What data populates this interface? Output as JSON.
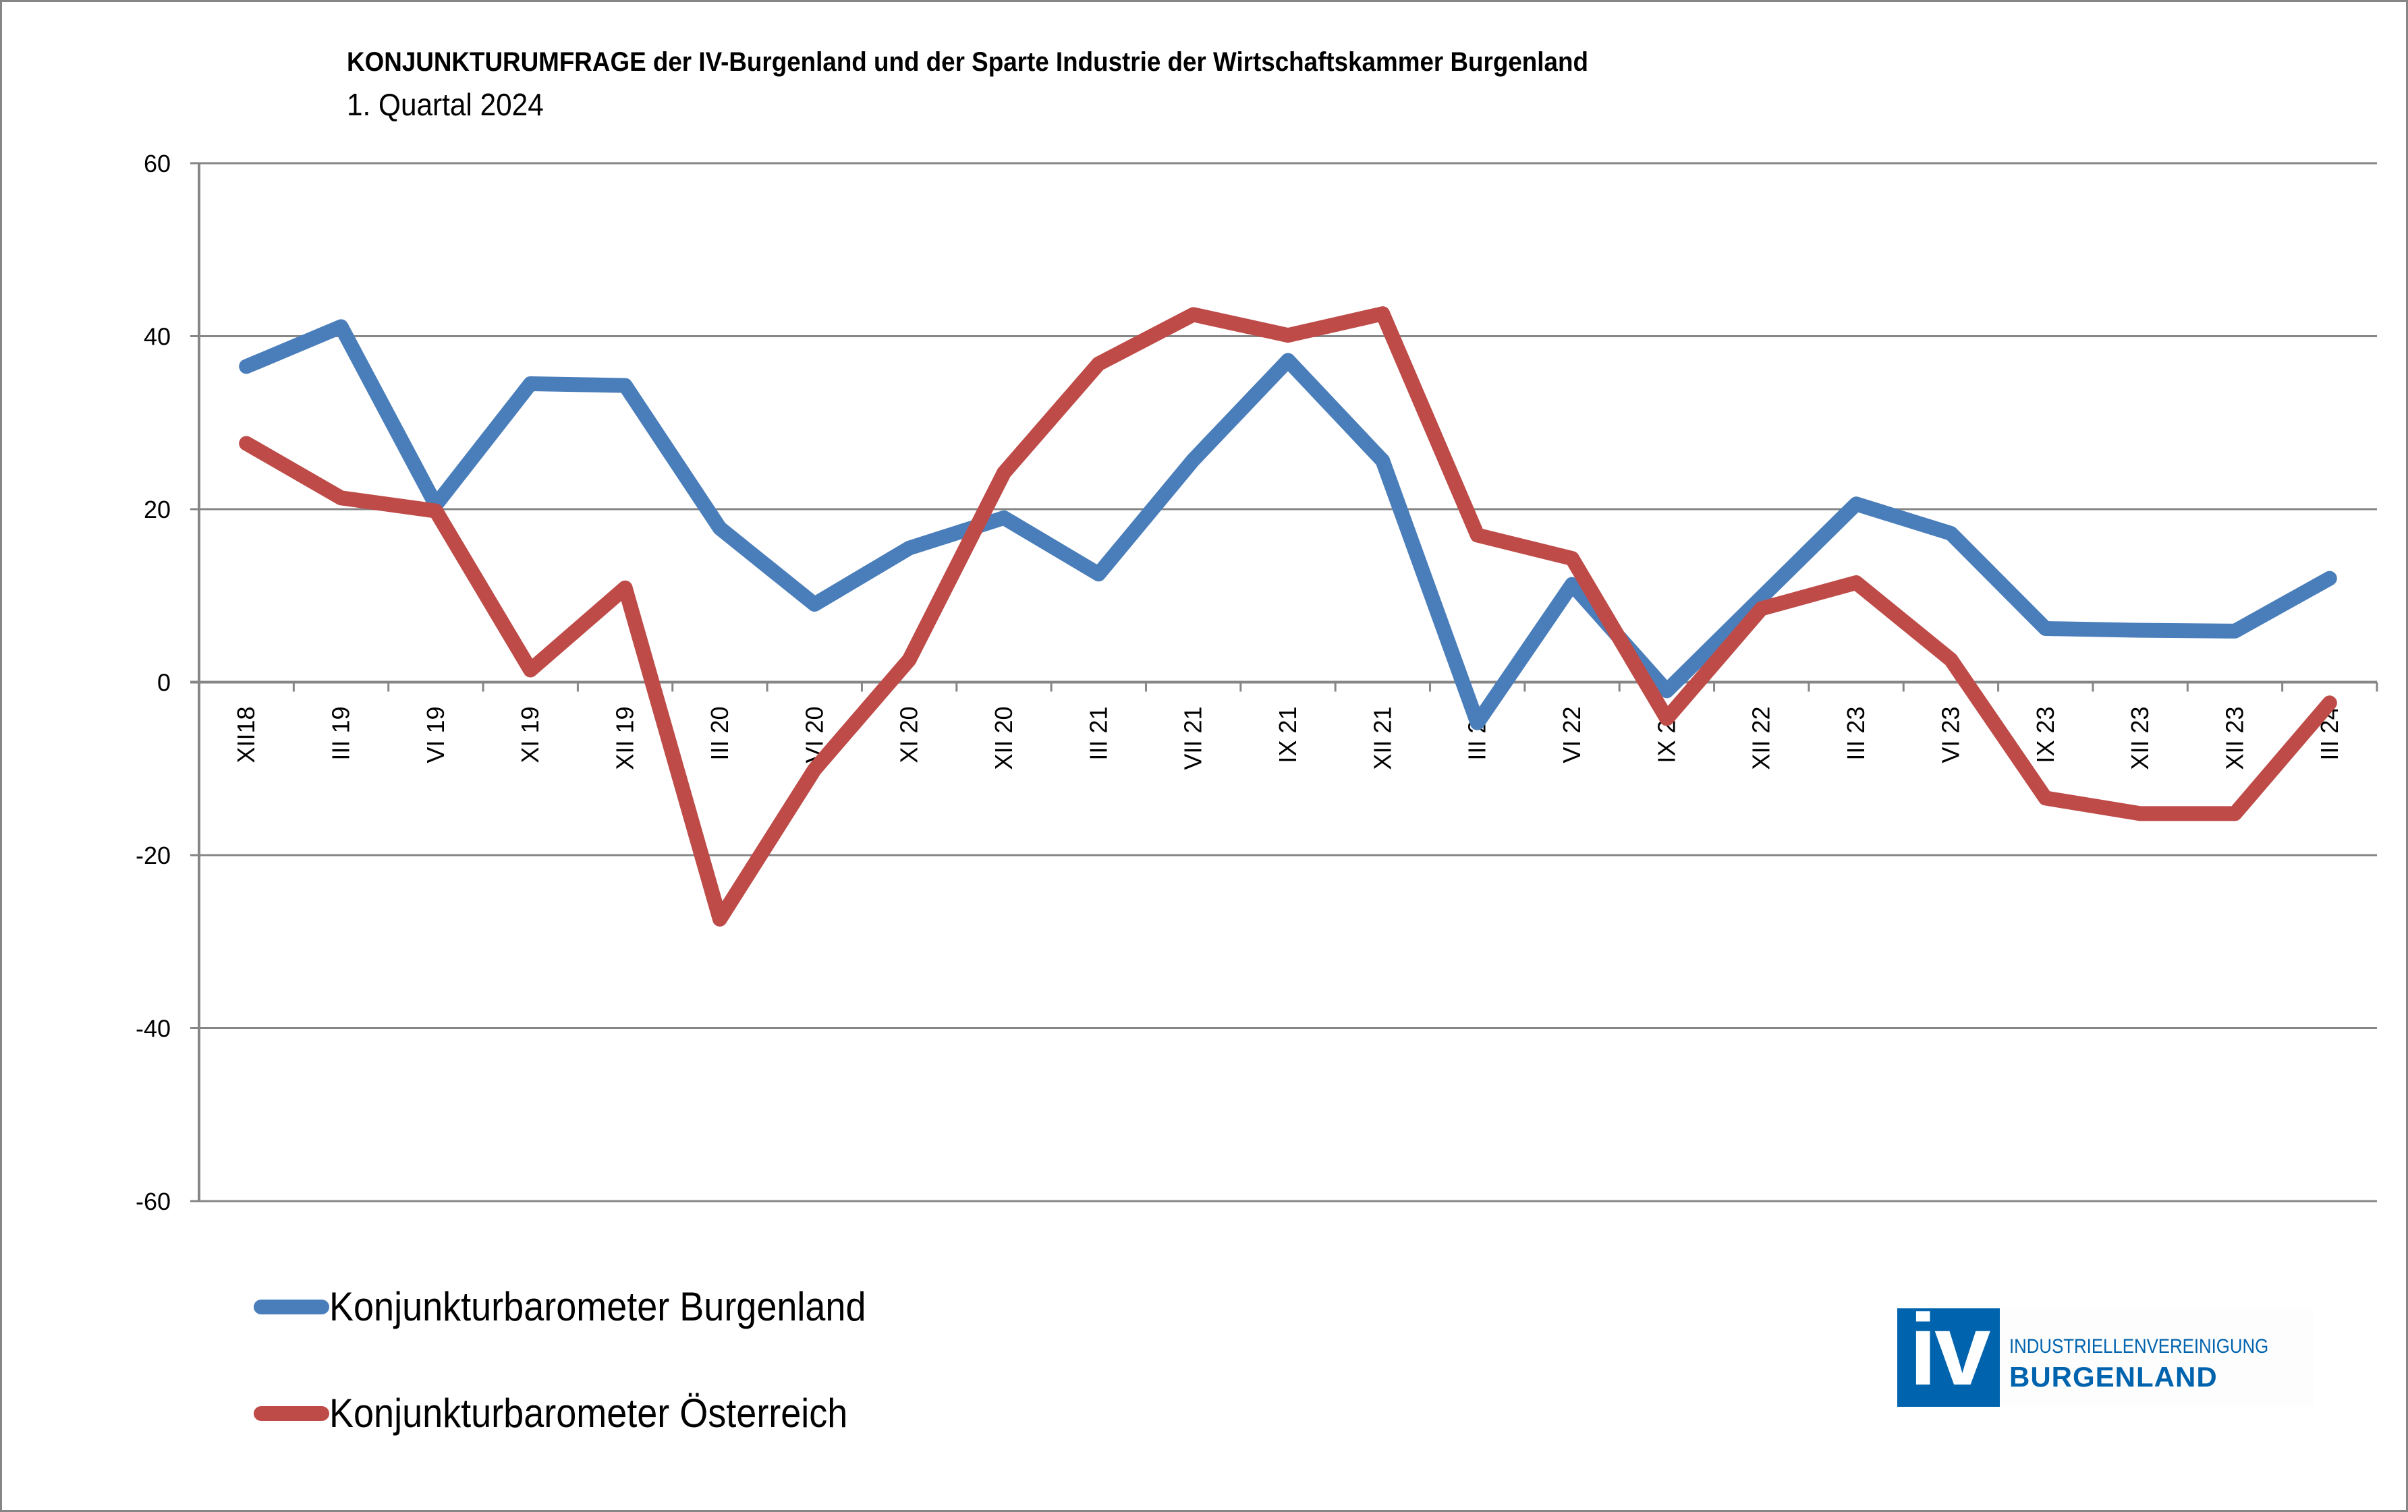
{
  "chart_data": {
    "type": "line",
    "title": "KONJUNKTURUMFRAGE der IV-Burgenland und der Sparte Industrie der Wirtschaftskammer Burgenland",
    "subtitle": "1. Quartal 2024",
    "xlabel": "",
    "ylabel": "",
    "ylim": [
      -60,
      60
    ],
    "yticks": [
      60,
      40,
      20,
      0,
      -20,
      -40,
      -60
    ],
    "grid": true,
    "legend_position": "bottom-left",
    "categories": [
      "XII18",
      "III 19",
      "VI 19",
      "XI 19",
      "XII 19",
      "III 20",
      "VI 20",
      "XI 20",
      "XII 20",
      "III 21",
      "VII 21",
      "IX 21",
      "XII 21",
      "III 22",
      "VI 22",
      "IX 22",
      "XII 22",
      "III 23",
      "VI 23",
      "IX 23",
      "XII 23",
      "XII 23",
      "III 24"
    ],
    "series": [
      {
        "name": "Konjunkturbarometer Burgenland",
        "color": "#4a7ebb",
        "values": [
          36.5,
          41.1,
          20.5,
          34.5,
          34.3,
          17.8,
          9.0,
          15.5,
          19.0,
          12.5,
          25.7,
          37.2,
          25.6,
          -4.7,
          11.3,
          -1.0,
          9.8,
          20.6,
          17.2,
          6.2,
          6.0,
          5.9,
          12.0
        ]
      },
      {
        "name": "Konjunkturbarometer Österreich",
        "color": "#be4b48",
        "values": [
          27.6,
          21.3,
          19.8,
          1.4,
          10.9,
          -27.4,
          -10.1,
          2.6,
          24.2,
          36.8,
          42.5,
          40.1,
          42.6,
          17.0,
          14.3,
          -4.2,
          8.5,
          11.5,
          2.6,
          -13.4,
          -15.2,
          -15.2,
          -2.4
        ]
      }
    ]
  },
  "logo": {
    "mark": "iv",
    "line1": "INDUSTRIELLENVEREINIGUNG",
    "line2": "BURGENLAND",
    "color": "#0063ae"
  }
}
